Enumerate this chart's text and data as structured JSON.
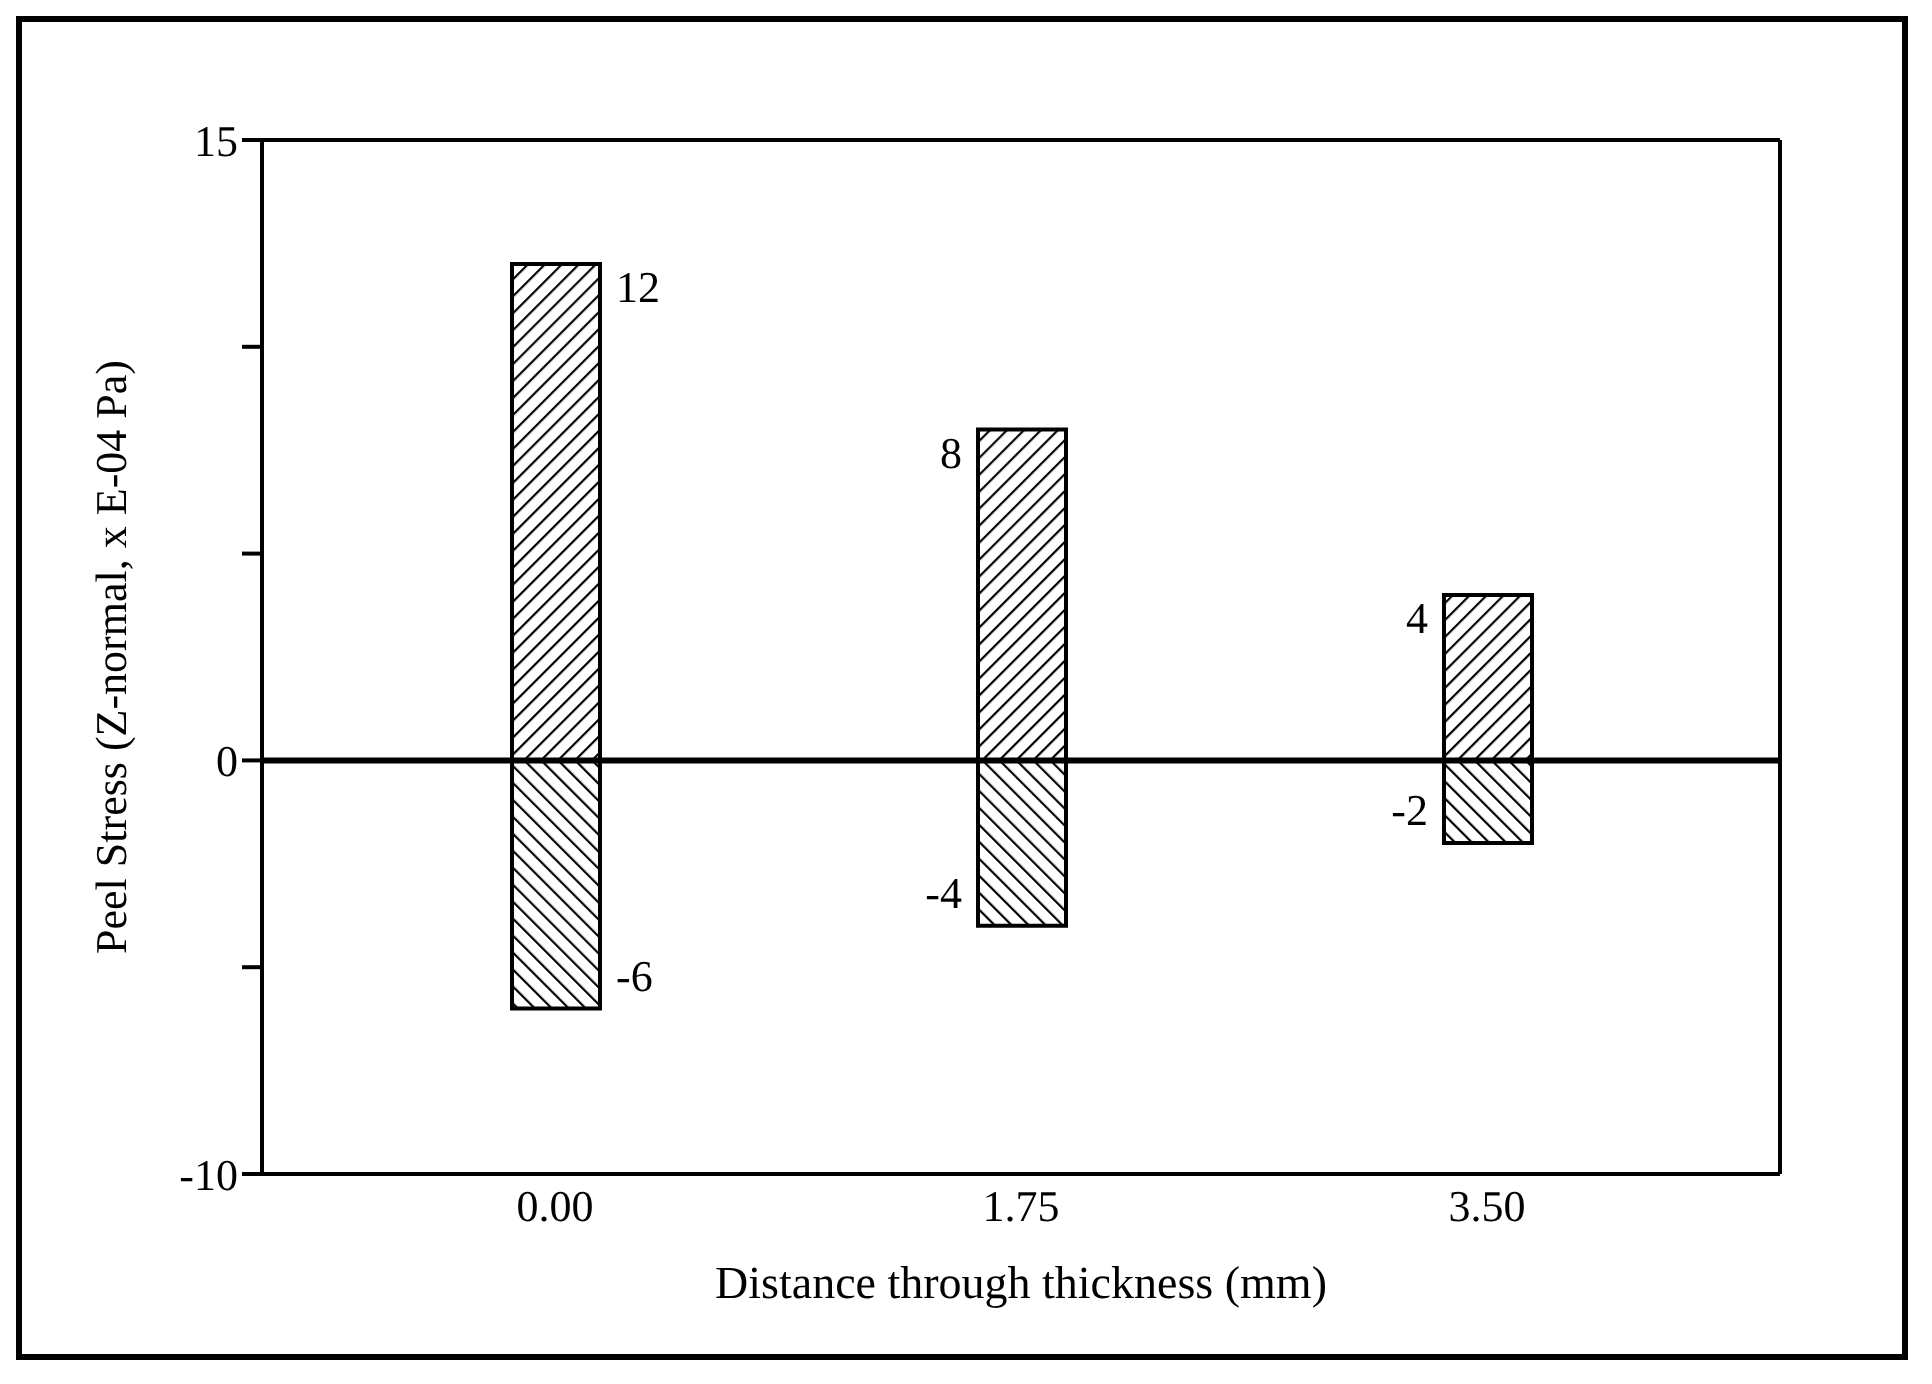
{
  "chart_data": {
    "type": "bar",
    "xlabel": "Distance through thickness (mm)",
    "ylabel": "Peel Stress (Z-normal, x E-04 Pa)",
    "categories": [
      "0.00",
      "1.75",
      "3.50"
    ],
    "series": [
      {
        "color": "#000000",
        "values": [
          12,
          8,
          4
        ]
      },
      {
        "color": "#000000",
        "values": [
          -6,
          -4,
          -2
        ]
      }
    ],
    "stacked": true,
    "data_labels": true,
    "ylim": [
      -10,
      15
    ],
    "yticks": [
      -10,
      {
        "value": -5,
        "label": null
      },
      0,
      {
        "value": 5,
        "label": null
      },
      {
        "value": 10,
        "label": null
      },
      15
    ],
    "ref_lines": [
      {
        "axis": "y",
        "value": 0,
        "color": "#000000"
      }
    ],
    "grid": false,
    "legend": false
  }
}
